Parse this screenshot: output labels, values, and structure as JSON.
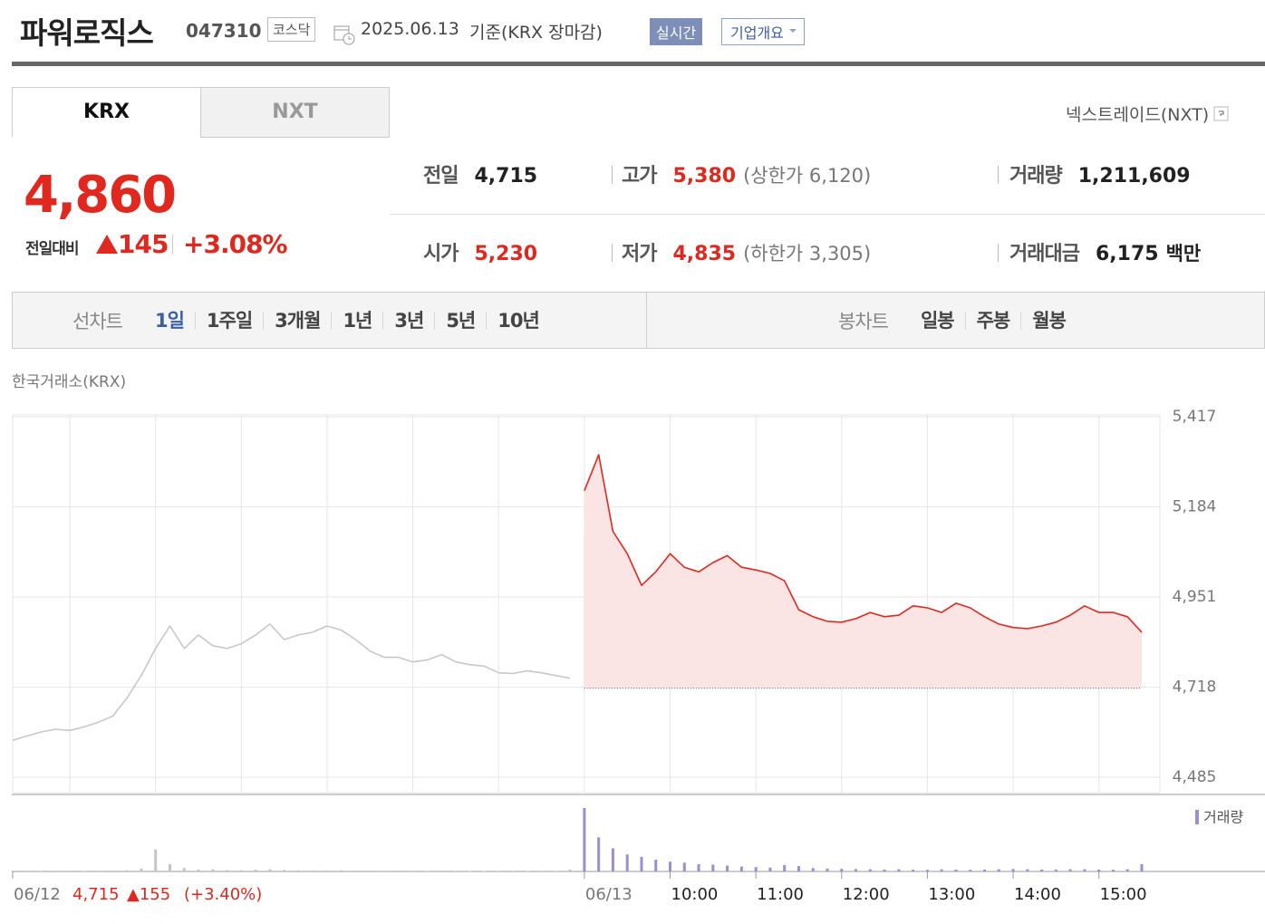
{
  "header": {
    "name": "파워로직스",
    "code": "047310",
    "market": "코스닥",
    "date": "2025.06.13",
    "basis": "기준(KRX 장마감)",
    "realtime": "실시간",
    "company": "기업개요"
  },
  "tabs": [
    "KRX",
    "NXT"
  ],
  "nxt_link": "넥스트레이드(NXT)",
  "quote": {
    "price": "4,860",
    "change_label": "전일대비",
    "change": "145",
    "rate": "+3.08%"
  },
  "stats": [
    {
      "label": "전일",
      "value": "4,715",
      "color": "#222222"
    },
    {
      "label": "고가",
      "value": "5,380",
      "note": "(상한가 6,120)",
      "color": "#e0281e"
    },
    {
      "label": "거래량",
      "value": "1,211,609",
      "color": "#222222"
    },
    {
      "label": "시가",
      "value": "5,230",
      "color": "#e0281e"
    },
    {
      "label": "저가",
      "value": "4,835",
      "note": "(하한가 3,305)",
      "color": "#e0281e"
    },
    {
      "label": "거래대금",
      "value": "6,175",
      "note": "백만",
      "color": "#222222"
    }
  ],
  "menu": {
    "line_label": "선차트",
    "line_periods": [
      "1일",
      "1주일",
      "3개월",
      "1년",
      "3년",
      "5년",
      "10년"
    ],
    "candle_label": "봉차트",
    "candle_periods": [
      "일봉",
      "주봉",
      "월봉"
    ]
  },
  "chart_data": {
    "type": "line",
    "subtitle": "한국거래소(KRX)",
    "categories": [
      "06/12",
      null,
      null,
      null,
      null,
      null,
      null,
      null,
      null,
      null,
      null,
      null,
      null,
      null,
      null,
      null,
      null,
      null,
      null,
      null,
      null,
      null,
      null,
      null,
      null,
      null,
      null,
      null,
      null,
      null,
      null,
      null,
      null,
      null,
      null,
      null,
      null,
      null,
      null,
      null,
      "06/13",
      null,
      null,
      null,
      null,
      null,
      "10:00",
      null,
      null,
      null,
      null,
      null,
      "11:00",
      null,
      null,
      null,
      null,
      null,
      "12:00",
      null,
      null,
      null,
      null,
      null,
      "13:00",
      null,
      null,
      null,
      null,
      null,
      "14:00",
      null,
      null,
      null,
      null,
      null,
      "15:00",
      null,
      null,
      null
    ],
    "series": [
      {
        "color": "#c8c8c8",
        "values": [
          4580,
          4592,
          4602,
          4609,
          4606,
          4615,
          4627,
          4643,
          4690,
          4748,
          4818,
          4876,
          4818,
          4853,
          4825,
          4818,
          4830,
          4853,
          4881,
          4841,
          4853,
          4860,
          4876,
          4865,
          4841,
          4811,
          4795,
          4795,
          4783,
          4788,
          4802,
          4783,
          4776,
          4772,
          4755,
          4753,
          4760,
          4755,
          4748,
          4741,
          null,
          null,
          null,
          null,
          null,
          null,
          null,
          null,
          null,
          null,
          null,
          null,
          null,
          null,
          null,
          null,
          null,
          null,
          null,
          null,
          null,
          null,
          null,
          null,
          null,
          null,
          null,
          null,
          null,
          null,
          null,
          null,
          null,
          null,
          null,
          null,
          null,
          null,
          null,
          null
        ]
      },
      {
        "color": "#e0281e",
        "fill": "#fbe4e4",
        "values": [
          null,
          null,
          null,
          null,
          null,
          null,
          null,
          null,
          null,
          null,
          null,
          null,
          null,
          null,
          null,
          null,
          null,
          null,
          null,
          null,
          null,
          null,
          null,
          null,
          null,
          null,
          null,
          null,
          null,
          null,
          null,
          null,
          null,
          null,
          null,
          null,
          null,
          null,
          null,
          null,
          5226,
          5319,
          5121,
          5063,
          4981,
          5016,
          5063,
          5028,
          5016,
          5040,
          5058,
          5028,
          5021,
          5012,
          4993,
          4918,
          4900,
          4888,
          4886,
          4895,
          4911,
          4900,
          4904,
          4928,
          4923,
          4911,
          4935,
          4923,
          4900,
          4881,
          4872,
          4869,
          4876,
          4886,
          4904,
          4928,
          4911,
          4911,
          4900,
          4860
        ]
      }
    ],
    "reference_line": 4715,
    "ylim": [
      4445,
      5422
    ],
    "yticks": [
      {
        "value": 4485,
        "label": "4,485"
      },
      {
        "value": 4718,
        "label": "4,718"
      },
      {
        "value": 4951,
        "label": "4,951"
      },
      {
        "value": 5184,
        "label": "5,184"
      },
      {
        "value": 5417,
        "label": "5,417"
      }
    ],
    "grid": true,
    "volume": {
      "name": "거래량",
      "colors": [
        "#c4c4c4",
        "#9a8fd0"
      ],
      "values": [
        3000,
        2500,
        2000,
        2500,
        3000,
        2000,
        2500,
        3500,
        5000,
        12000,
        90000,
        30000,
        14000,
        8000,
        9000,
        6000,
        5000,
        7000,
        9000,
        6000,
        5000,
        4000,
        4000,
        5000,
        3000,
        3000,
        2500,
        3000,
        2500,
        2000,
        3000,
        2000,
        2000,
        1800,
        1500,
        1500,
        2000,
        1500,
        2000,
        8000,
        260000,
        140000,
        95000,
        70000,
        60000,
        48000,
        40000,
        36000,
        30000,
        28000,
        24000,
        20000,
        18000,
        16000,
        26000,
        22000,
        14000,
        12000,
        11000,
        10000,
        9000,
        8000,
        9000,
        8000,
        7000,
        9000,
        8000,
        7000,
        8000,
        9000,
        10000,
        9000,
        8000,
        8000,
        9000,
        9000,
        8000,
        7000,
        9000,
        30000
      ]
    },
    "prev_day": {
      "close": "4,715",
      "change": "▲155",
      "rate": "(+3.40%)"
    }
  }
}
